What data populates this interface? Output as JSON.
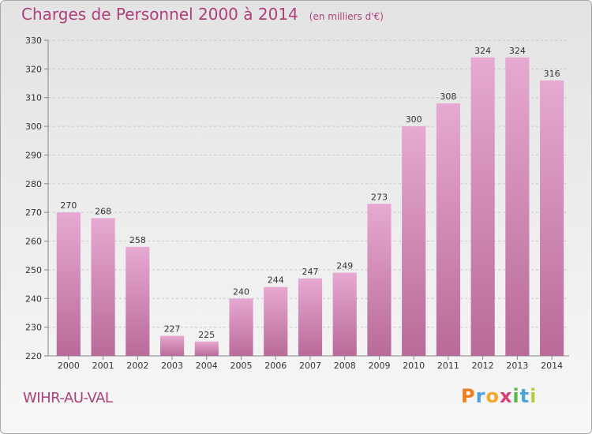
{
  "title": "Charges de Personnel 2000 à 2014",
  "subtitle": "(en milliers d'€)",
  "commune": "WIHR-AU-VAL",
  "logo": {
    "letters": [
      "P",
      "r",
      "o",
      "x",
      "i",
      "t",
      "i"
    ],
    "colors": [
      "#f07d1a",
      "#4aa3d9",
      "#f3a72a",
      "#d9407a",
      "#54b848",
      "#4aa3d9",
      "#b8cc3c"
    ]
  },
  "chart_data": {
    "type": "bar",
    "categories": [
      "2000",
      "2001",
      "2002",
      "2003",
      "2004",
      "2005",
      "2006",
      "2007",
      "2008",
      "2009",
      "2010",
      "2011",
      "2012",
      "2013",
      "2014"
    ],
    "values": [
      270,
      268,
      258,
      227,
      225,
      240,
      244,
      247,
      249,
      273,
      300,
      308,
      324,
      324,
      316
    ],
    "ylim": [
      220,
      330
    ],
    "yticks": [
      220,
      230,
      240,
      250,
      260,
      270,
      280,
      290,
      300,
      310,
      320,
      330
    ],
    "grid": true,
    "bar_color_top": "#e6a9d1",
    "bar_color_bottom": "#b96a98"
  }
}
